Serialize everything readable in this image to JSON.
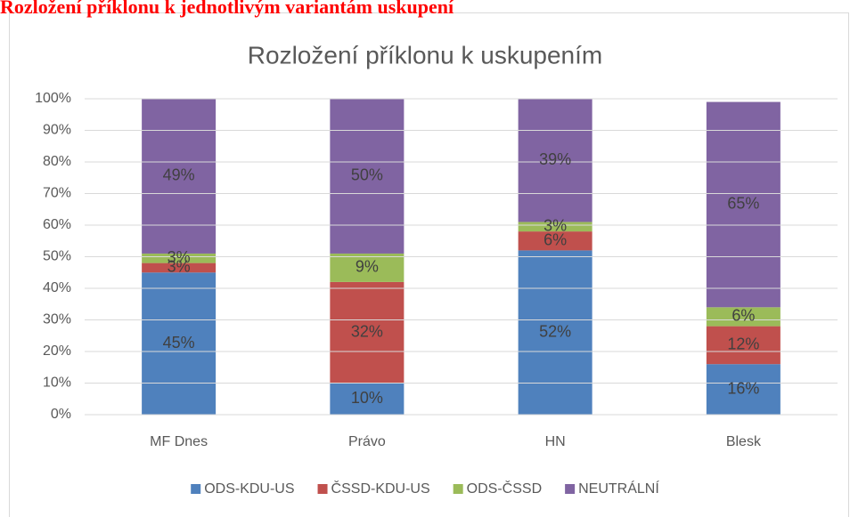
{
  "heading": "Rozložení příklonu k jednotlivým variantám uskupení",
  "chart_data": {
    "type": "bar",
    "stacked": true,
    "title": "Rozložení příklonu k uskupením",
    "categories": [
      "MF Dnes",
      "Právo",
      "HN",
      "Blesk"
    ],
    "series": [
      {
        "name": "ODS-KDU-US",
        "color": "#4f81bd",
        "values": [
          45,
          10,
          52,
          16
        ],
        "value_labels": [
          "45%",
          "10%",
          "52%",
          "16%"
        ]
      },
      {
        "name": "ČSSD-KDU-US",
        "color": "#c0504d",
        "values": [
          3,
          32,
          6,
          12
        ],
        "value_labels": [
          "3%",
          "32%",
          "6%",
          "12%"
        ]
      },
      {
        "name": "ODS-ČSSD",
        "color": "#9bbb59",
        "values": [
          3,
          9,
          3,
          6
        ],
        "value_labels": [
          "3%",
          "9%",
          "3%",
          "6%"
        ]
      },
      {
        "name": "NEUTRÁLNÍ",
        "color": "#8064a2",
        "values": [
          49,
          50,
          39,
          65
        ],
        "value_labels": [
          "49%",
          "50%",
          "39%",
          "65%"
        ]
      }
    ],
    "ylim": [
      0,
      100
    ],
    "yticks": [
      {
        "value": 0,
        "label": "0%"
      },
      {
        "value": 10,
        "label": "10%"
      },
      {
        "value": 20,
        "label": "20%"
      },
      {
        "value": 30,
        "label": "30%"
      },
      {
        "value": 40,
        "label": "40%"
      },
      {
        "value": 50,
        "label": "50%"
      },
      {
        "value": 60,
        "label": "60%"
      },
      {
        "value": 70,
        "label": "70%"
      },
      {
        "value": 80,
        "label": "80%"
      },
      {
        "value": 90,
        "label": "90%"
      },
      {
        "value": 100,
        "label": "100%"
      }
    ],
    "grid": true,
    "legend": "bottom"
  }
}
